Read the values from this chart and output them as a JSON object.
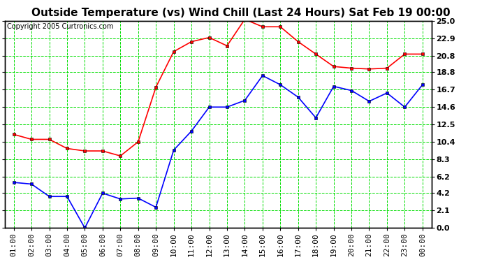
{
  "title": "Outside Temperature (vs) Wind Chill (Last 24 Hours) Sat Feb 19 00:00",
  "copyright": "Copyright 2005 Curtronics.com",
  "x_labels": [
    "01:00",
    "02:00",
    "03:00",
    "04:00",
    "05:00",
    "06:00",
    "07:00",
    "08:00",
    "09:00",
    "10:00",
    "11:00",
    "12:00",
    "13:00",
    "14:00",
    "15:00",
    "16:00",
    "17:00",
    "18:00",
    "19:00",
    "20:00",
    "21:00",
    "22:00",
    "23:00",
    "00:00"
  ],
  "red_data": [
    11.3,
    10.7,
    10.7,
    9.6,
    9.3,
    9.3,
    8.7,
    10.4,
    17.0,
    21.3,
    22.5,
    23.0,
    22.0,
    25.2,
    24.3,
    24.3,
    22.5,
    21.0,
    19.5,
    19.3,
    19.2,
    19.3,
    21.0,
    21.0
  ],
  "blue_data": [
    5.5,
    5.3,
    3.8,
    3.8,
    0.0,
    4.2,
    3.5,
    3.6,
    2.5,
    9.4,
    11.7,
    14.6,
    14.6,
    15.4,
    18.4,
    17.3,
    15.8,
    13.3,
    17.1,
    16.6,
    15.3,
    16.3,
    14.6,
    17.3
  ],
  "ylim": [
    0.0,
    25.0
  ],
  "yticks": [
    0.0,
    2.1,
    4.2,
    6.2,
    8.3,
    10.4,
    12.5,
    14.6,
    16.7,
    18.8,
    20.8,
    22.9,
    25.0
  ],
  "bg_color": "#ffffff",
  "plot_bg": "#ffffff",
  "grid_color": "#00dd00",
  "red_color": "#ff0000",
  "blue_color": "#0000ff",
  "title_fontsize": 11,
  "copyright_fontsize": 7,
  "tick_fontsize": 8
}
